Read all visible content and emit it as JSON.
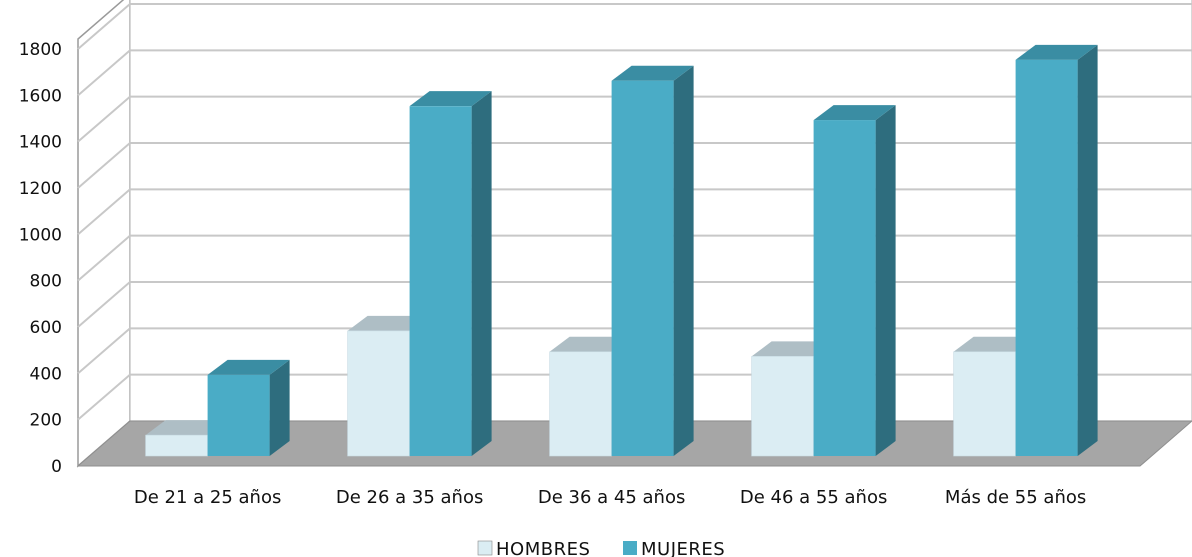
{
  "chart_data": {
    "type": "bar",
    "categories": [
      "De 21 a 25 años",
      "De 26 a 35 años",
      "De 36 a 45 años",
      "De 46 a 55 años",
      "Más de 55 años"
    ],
    "series": [
      {
        "name": "HOMBRES",
        "values": [
          90,
          540,
          450,
          430,
          450
        ],
        "color": "#dbedf3"
      },
      {
        "name": "MUJERES",
        "values": [
          350,
          1510,
          1620,
          1450,
          1710
        ],
        "color": "#4aacc6"
      }
    ],
    "y_ticks": [
      "0",
      "200",
      "400",
      "600",
      "800",
      "1000",
      "1200",
      "1400",
      "1600",
      "1800"
    ],
    "ylim": [
      0,
      1800
    ],
    "grid": true,
    "legend_position": "bottom",
    "style": "3d-column",
    "title": "",
    "xlabel": "",
    "ylabel": ""
  },
  "legend": {
    "items": [
      {
        "label": "HOMBRES",
        "color": "#dbedf3"
      },
      {
        "label": "MUJERES",
        "color": "#4aacc6"
      }
    ]
  }
}
